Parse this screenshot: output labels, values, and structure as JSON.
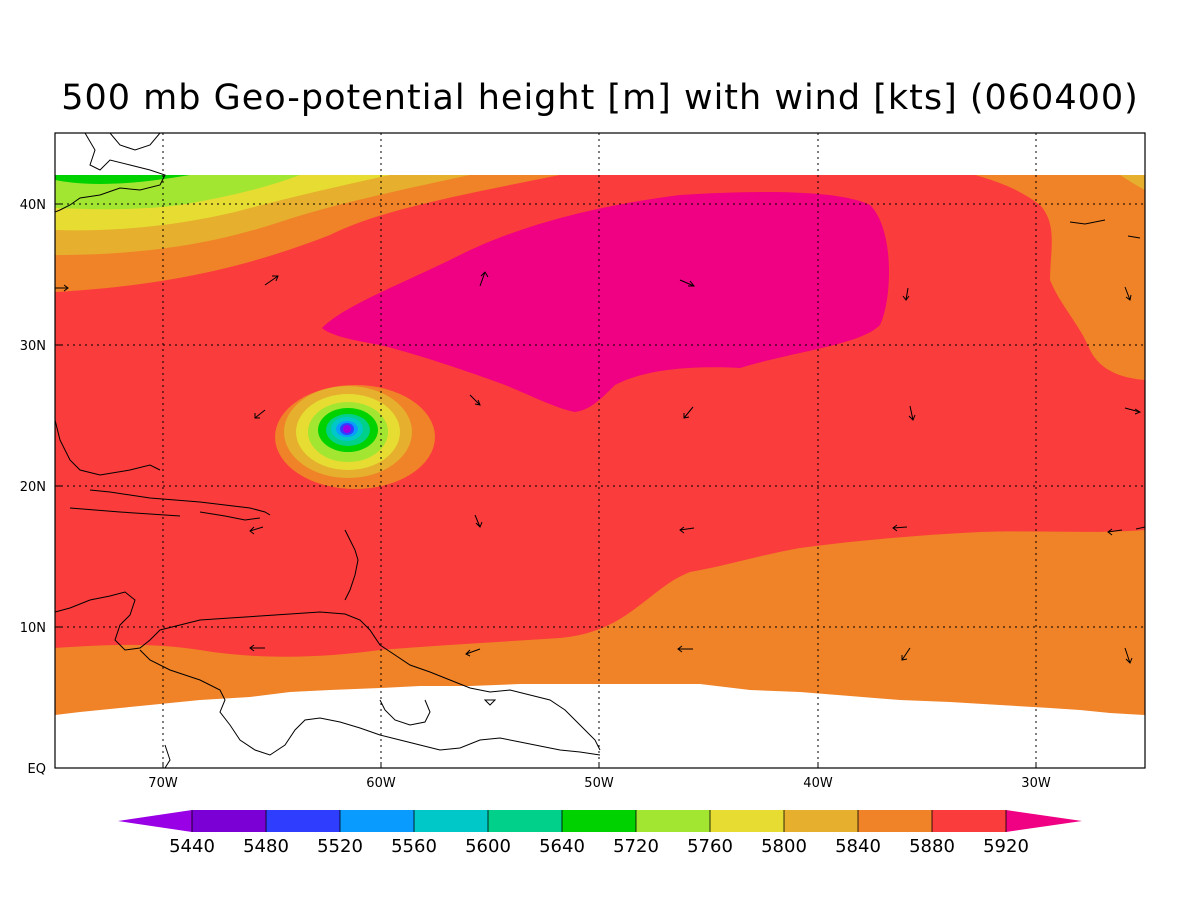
{
  "title": "500 mb Geo-potential height [m] with wind [kts] (060400)",
  "map": {
    "lon_labels": [
      "70W",
      "60W",
      "50W",
      "40W",
      "30W"
    ],
    "lat_labels": [
      "EQ",
      "10N",
      "20N",
      "30N",
      "40N"
    ],
    "grid": "dotted"
  },
  "colorbar": {
    "labels": [
      "5440",
      "5480",
      "5520",
      "5560",
      "5600",
      "5640",
      "5720",
      "5760",
      "5800",
      "5840",
      "5880",
      "5920"
    ],
    "colors": [
      "#9a00e6",
      "#7b00d6",
      "#2f3dff",
      "#0a9bff",
      "#00c8c8",
      "#00d08a",
      "#00d200",
      "#a2e632",
      "#e6dc32",
      "#e6af2d",
      "#f08228",
      "#fa3c3c",
      "#f00082"
    ]
  }
}
